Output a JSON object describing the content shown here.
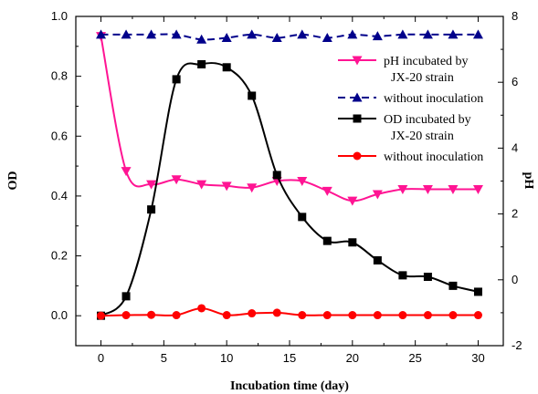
{
  "chart_data": {
    "type": "line",
    "xlabel": "Incubation time (day)",
    "ylabel": "OD",
    "y2label": "pH",
    "xlim": [
      -2,
      32
    ],
    "ylim": [
      -0.1,
      1.0
    ],
    "y2lim": [
      -2,
      8
    ],
    "x_ticks": [
      0,
      5,
      10,
      15,
      20,
      25,
      30
    ],
    "y_ticks": [
      0.0,
      0.2,
      0.4,
      0.6,
      0.8,
      1.0
    ],
    "y2_ticks": [
      -2,
      0,
      2,
      4,
      6,
      8
    ],
    "x_tick_labels": [
      "0",
      "5",
      "10",
      "15",
      "20",
      "25",
      "30"
    ],
    "y_tick_labels": [
      "0.0",
      "0.2",
      "0.4",
      "0.6",
      "0.8",
      "1.0"
    ],
    "y2_tick_labels": [
      "-2",
      "0",
      "2",
      "4",
      "6",
      "8"
    ],
    "grid": false,
    "legend_position": "top-right",
    "series": [
      {
        "name": "pH incubated by JX-20 strain",
        "legend_lines": [
          "pH incubated by",
          "JX-20 strain"
        ],
        "axis": "right",
        "color": "#ff1493",
        "marker": "triangle-down",
        "x": [
          0,
          2,
          4,
          6,
          8,
          10,
          12,
          14,
          16,
          18,
          20,
          22,
          24,
          26,
          28,
          30
        ],
        "y": [
          7.4,
          3.3,
          2.9,
          3.05,
          2.9,
          2.85,
          2.8,
          3.0,
          3.0,
          2.7,
          2.4,
          2.6,
          2.75,
          2.75,
          2.75,
          2.75
        ]
      },
      {
        "name": "without inoculation",
        "legend_lines": [
          "without inoculation"
        ],
        "axis": "right",
        "color": "#00008b",
        "dashed": true,
        "marker": "triangle-up",
        "x": [
          0,
          2,
          4,
          6,
          8,
          10,
          12,
          14,
          16,
          18,
          20,
          22,
          24,
          26,
          28,
          30
        ],
        "y": [
          7.45,
          7.45,
          7.45,
          7.45,
          7.3,
          7.35,
          7.45,
          7.35,
          7.45,
          7.35,
          7.45,
          7.4,
          7.45,
          7.45,
          7.45,
          7.45
        ]
      },
      {
        "name": "OD incubated by JX-20 strain",
        "legend_lines": [
          "OD incubated by",
          "JX-20 strain"
        ],
        "axis": "left",
        "color": "#000000",
        "marker": "square",
        "x": [
          0,
          2,
          4,
          6,
          8,
          10,
          12,
          14,
          16,
          18,
          20,
          22,
          24,
          26,
          28,
          30
        ],
        "y": [
          0.0,
          0.065,
          0.355,
          0.79,
          0.84,
          0.83,
          0.735,
          0.47,
          0.33,
          0.25,
          0.245,
          0.185,
          0.135,
          0.13,
          0.1,
          0.08
        ]
      },
      {
        "name": "without inoculation",
        "legend_lines": [
          "without inoculation"
        ],
        "axis": "left",
        "color": "#ff0000",
        "marker": "circle",
        "x": [
          0,
          2,
          4,
          6,
          8,
          10,
          12,
          14,
          16,
          18,
          20,
          22,
          24,
          26,
          28,
          30
        ],
        "y": [
          0.0,
          0.002,
          0.003,
          0.002,
          0.025,
          0.002,
          0.008,
          0.01,
          0.002,
          0.002,
          0.002,
          0.002,
          0.002,
          0.002,
          0.002,
          0.002
        ]
      }
    ]
  }
}
